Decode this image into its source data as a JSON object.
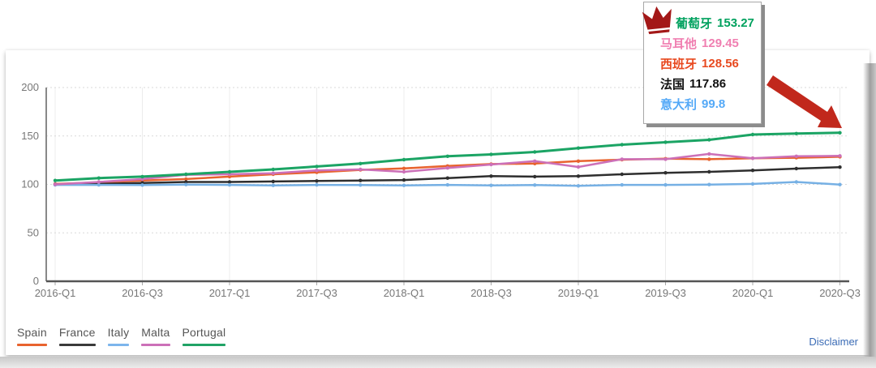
{
  "tooltip": {
    "crown_color": "#a31818",
    "rows": [
      {
        "label": "葡萄牙",
        "value": "153.27",
        "color": "#00a15e"
      },
      {
        "label": "马耳他",
        "value": "129.45",
        "color": "#f07fb1"
      },
      {
        "label": "西班牙",
        "value": "128.56",
        "color": "#e8491f"
      },
      {
        "label": "法国",
        "value": "117.86",
        "color": "#111111"
      },
      {
        "label": "意大利",
        "value": "99.8",
        "color": "#54a9f7"
      }
    ]
  },
  "legend": {
    "items": [
      {
        "label": "Spain",
        "color": "#e8632e"
      },
      {
        "label": "France",
        "color": "#3a3a3a"
      },
      {
        "label": "Italy",
        "color": "#7cb5ec"
      },
      {
        "label": "Malta",
        "color": "#cc70b8"
      },
      {
        "label": "Portugal",
        "color": "#21a366"
      }
    ]
  },
  "footer": {
    "disclaimer_label": "Disclaimer",
    "link_color": "#3a6bb5"
  },
  "annotation": {
    "arrow_color": "#c1281c"
  },
  "chart_data": {
    "type": "line",
    "title": "",
    "xlabel": "",
    "ylabel": "",
    "ylim": [
      0,
      200
    ],
    "yticks": [
      0,
      50,
      100,
      150,
      200
    ],
    "grid": true,
    "legend_position": "bottom",
    "x_tick_step": 2,
    "x": [
      "2016-Q1",
      "2016-Q2",
      "2016-Q3",
      "2016-Q4",
      "2017-Q1",
      "2017-Q2",
      "2017-Q3",
      "2017-Q4",
      "2018-Q1",
      "2018-Q2",
      "2018-Q3",
      "2018-Q4",
      "2019-Q1",
      "2019-Q2",
      "2019-Q3",
      "2019-Q4",
      "2020-Q1",
      "2020-Q2",
      "2020-Q3"
    ],
    "series": [
      {
        "name": "Spain",
        "color": "#e8632e",
        "values": [
          100.5,
          102,
          104,
          105.5,
          108,
          110.5,
          112.5,
          115,
          116.5,
          119,
          121,
          121.5,
          124,
          125.5,
          126.5,
          126,
          127,
          127.5,
          128.56
        ]
      },
      {
        "name": "France",
        "color": "#2e2e2e",
        "values": [
          100,
          100.5,
          101.5,
          102.5,
          102.5,
          103,
          103.5,
          104,
          104.5,
          106.5,
          108.5,
          108,
          108.5,
          110.5,
          112,
          113,
          114.5,
          116.3,
          117.86
        ]
      },
      {
        "name": "Italy",
        "color": "#76b0e4",
        "values": [
          99.5,
          99.5,
          99.3,
          99.8,
          99.5,
          99,
          99.5,
          99.3,
          99,
          99.5,
          99,
          99.3,
          98.5,
          99.5,
          99.5,
          99.8,
          100.5,
          102.5,
          99.8
        ]
      },
      {
        "name": "Malta",
        "color": "#cc70b8",
        "values": [
          100,
          102.5,
          105.5,
          110,
          110.5,
          111.5,
          114.5,
          115.5,
          113,
          117,
          120.5,
          124,
          118,
          126,
          126,
          131.5,
          127,
          129,
          129.45
        ]
      },
      {
        "name": "Portugal",
        "color": "#1ba464",
        "values": [
          104,
          106.5,
          108,
          110.5,
          113,
          115.5,
          118.5,
          121.5,
          125.5,
          129,
          131,
          133.5,
          137.5,
          141,
          143.5,
          146,
          151.5,
          152.5,
          153.27
        ]
      }
    ]
  }
}
